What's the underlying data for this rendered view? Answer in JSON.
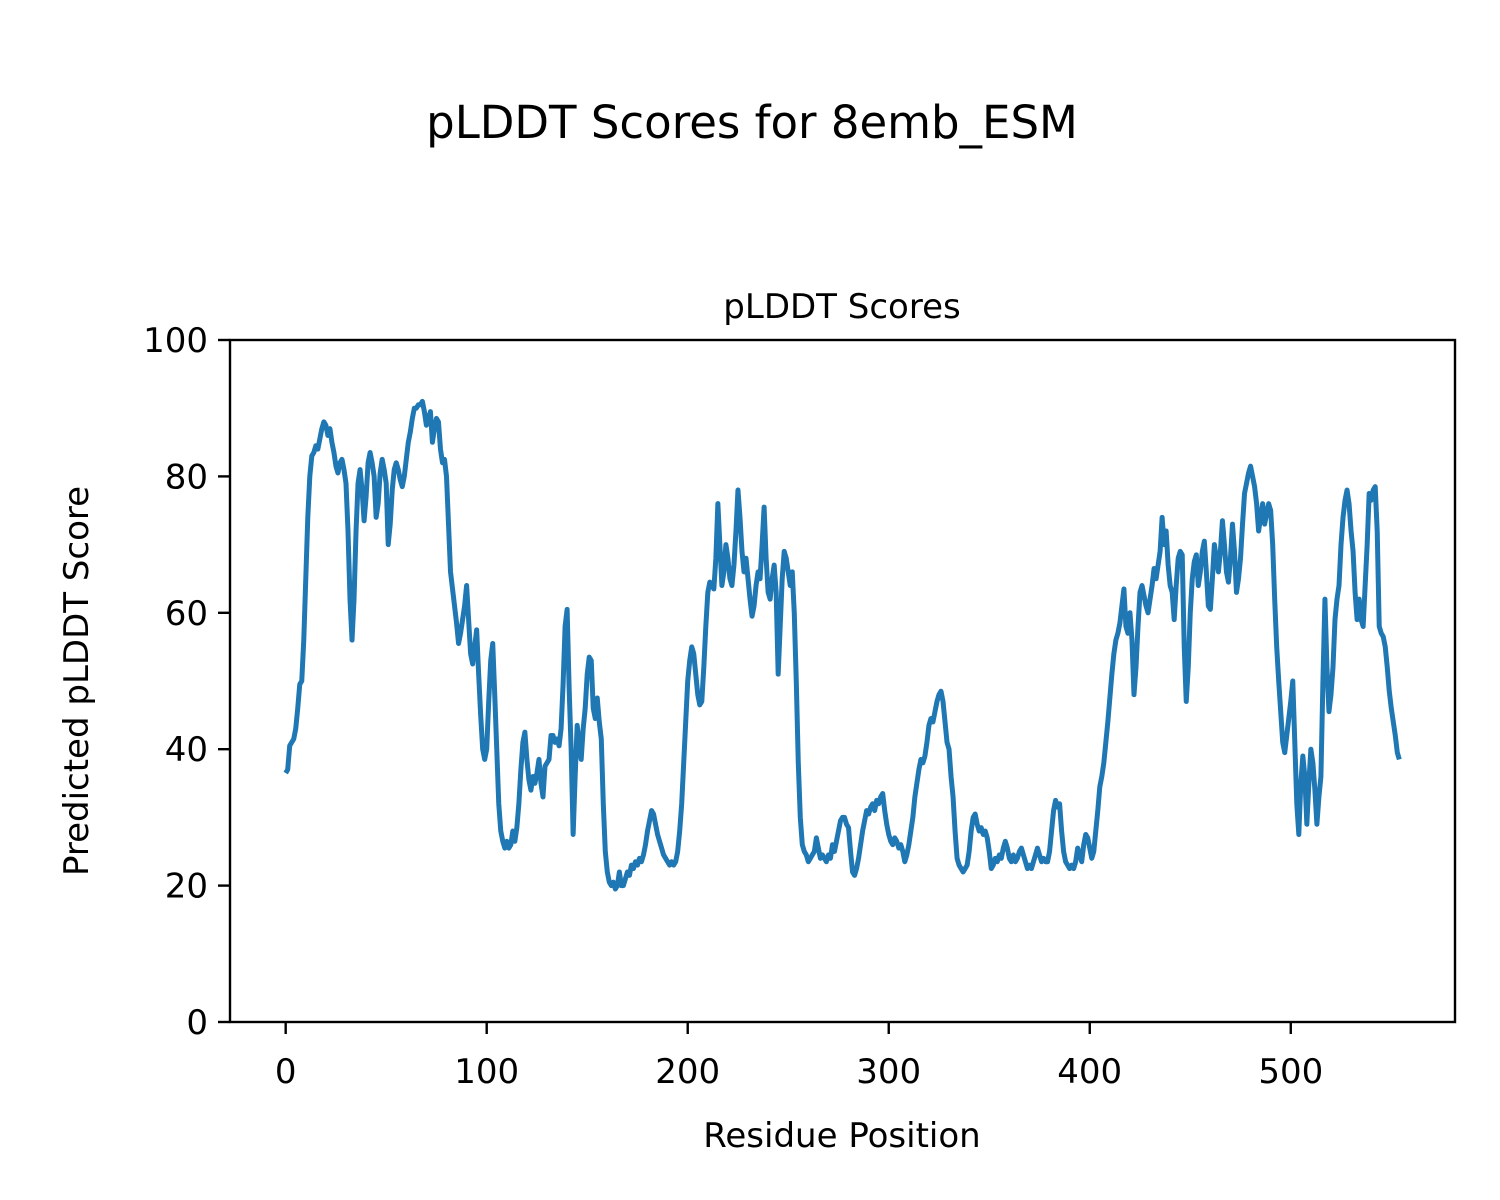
{
  "figure": {
    "title": "pLDDT Scores for 8emb_ESM"
  },
  "chart_data": {
    "type": "line",
    "title": "pLDDT Scores",
    "xlabel": "Residue Position",
    "ylabel": "Predicted pLDDT Score",
    "series": [
      {
        "name": "pLDDT",
        "color": "#1f77b4",
        "x_start": 0,
        "x_step": 1,
        "y": [
          36.5,
          37,
          40.5,
          41,
          41.5,
          43,
          46,
          49.5,
          50,
          56,
          65,
          74,
          80,
          83,
          83.5,
          84.5,
          84,
          85.5,
          87,
          88,
          87.5,
          86,
          87,
          85,
          83.5,
          81.5,
          80.5,
          82,
          82.5,
          81,
          79,
          72,
          62,
          56,
          62,
          72,
          79,
          81,
          78,
          73.5,
          77,
          82,
          83.5,
          82,
          80,
          74,
          76,
          80.5,
          82.5,
          81,
          79,
          70,
          73,
          78,
          81,
          82,
          81,
          79.5,
          78.5,
          80,
          82.5,
          85,
          86.5,
          88.5,
          90,
          90,
          90.5,
          90.5,
          91,
          89.5,
          87.5,
          88.5,
          89.5,
          85,
          87,
          88.5,
          88,
          84,
          82,
          82.5,
          80,
          73,
          66,
          63.5,
          61,
          58.5,
          55.5,
          57,
          59,
          61,
          64,
          59,
          54,
          52.5,
          55,
          57.5,
          51,
          45,
          40,
          38.5,
          40,
          47,
          53,
          55.5,
          48,
          40,
          32,
          28,
          26.5,
          25.5,
          26.5,
          25.5,
          26,
          28,
          26.5,
          28.5,
          32,
          37,
          41,
          42.5,
          38.5,
          35.5,
          34,
          36,
          35,
          36.5,
          38.5,
          35,
          33,
          37.5,
          38,
          38.5,
          42,
          42,
          41,
          41.5,
          40.5,
          43,
          49.5,
          58,
          60.5,
          49,
          40,
          27.5,
          36,
          43.5,
          41,
          38.5,
          43,
          46,
          51,
          53.5,
          53,
          46,
          44.5,
          47.5,
          44,
          41.5,
          32,
          25,
          22,
          20.5,
          20,
          20.5,
          19.5,
          20,
          22,
          20,
          20,
          21,
          22,
          21.5,
          23,
          22.5,
          23.5,
          23,
          24,
          23.5,
          24.5,
          26,
          28,
          29.5,
          31,
          30.5,
          29,
          27.5,
          26.5,
          25.5,
          24.5,
          24,
          23.5,
          23,
          23.5,
          23,
          23.5,
          25,
          28,
          32,
          38,
          44,
          50,
          53,
          55,
          54,
          51,
          48,
          46.5,
          47,
          52,
          58,
          63,
          64.5,
          64,
          63.5,
          68,
          76,
          70,
          64,
          66,
          70,
          68,
          65,
          64,
          67,
          72,
          78,
          74,
          69,
          66,
          68,
          65,
          62,
          59.5,
          61,
          64,
          66,
          65,
          70,
          75.5,
          68,
          63,
          62,
          65,
          67,
          63,
          51,
          58,
          65,
          69,
          68,
          66,
          64,
          66,
          60,
          50,
          38,
          30,
          26,
          25,
          24.5,
          23.5,
          24,
          24.5,
          25,
          27,
          25.5,
          24,
          24.5,
          24,
          23.5,
          24.5,
          24,
          26,
          25,
          26.5,
          28,
          29.5,
          30,
          30,
          29,
          28.5,
          25,
          22,
          21.5,
          22.5,
          24,
          26,
          28,
          29.5,
          31,
          30.5,
          31.5,
          32,
          31,
          32.5,
          32,
          33,
          33.5,
          31,
          29,
          27.5,
          26.5,
          26,
          27,
          26.5,
          25.5,
          26,
          25,
          23.5,
          24.5,
          26,
          28,
          30,
          33,
          35,
          37,
          38.5,
          38,
          39,
          41,
          43.5,
          44.5,
          44,
          45.5,
          47,
          48,
          48.5,
          47,
          44,
          41,
          40,
          36,
          33,
          28,
          24,
          23,
          22.5,
          22,
          22.5,
          23,
          25,
          28,
          30,
          30.5,
          29,
          28,
          28.5,
          27.5,
          28,
          27,
          25,
          22.5,
          23,
          24,
          23.5,
          24.5,
          24,
          25.5,
          26.5,
          25.5,
          24,
          23.5,
          24.5,
          23.5,
          24,
          25,
          25.5,
          24.5,
          23.5,
          22.5,
          23,
          22.5,
          23.5,
          24.5,
          25.5,
          24.5,
          23.5,
          24,
          23.5,
          23.5,
          25,
          28,
          31,
          32.5,
          31.5,
          32,
          28,
          25,
          23.5,
          23,
          22.5,
          23,
          22.5,
          23.5,
          25.5,
          24.5,
          23.5,
          26,
          27.5,
          27,
          25.5,
          24,
          25,
          28,
          31,
          34.5,
          36,
          38,
          41,
          44,
          47.5,
          51,
          54,
          56,
          57,
          58.5,
          61,
          63.5,
          58,
          57,
          60,
          56,
          48,
          52,
          58,
          63,
          64,
          62.5,
          61,
          60,
          62,
          64,
          66.5,
          65,
          67,
          69,
          74,
          70,
          72,
          67,
          64,
          63,
          59,
          64,
          68,
          69,
          68.5,
          55,
          47,
          52,
          60,
          65,
          67.5,
          68.5,
          64,
          66,
          69,
          70.5,
          66,
          61,
          60.5,
          65,
          70,
          68,
          66,
          69,
          73.5,
          70,
          66,
          64.5,
          68,
          73,
          69,
          63,
          65,
          68,
          73,
          77.5,
          79,
          80.5,
          81.5,
          80,
          78.5,
          76,
          72,
          74,
          76,
          73,
          74.5,
          76,
          75,
          70,
          62,
          55,
          50,
          45.5,
          41,
          39.5,
          42,
          44.5,
          47,
          50,
          41,
          32,
          27.5,
          35,
          39,
          36,
          29,
          35,
          40,
          38,
          34,
          29,
          33,
          36,
          50,
          62,
          52,
          45.5,
          48,
          52,
          59,
          62,
          64,
          70,
          74,
          76.5,
          78,
          76,
          72,
          69,
          63,
          59,
          62,
          59,
          58,
          64,
          70,
          77.5,
          76.5,
          78,
          78.5,
          72,
          58,
          57,
          56.5,
          55,
          52,
          48.5,
          46,
          44,
          42,
          39.5,
          38.5
        ]
      }
    ],
    "xlim": [
      -27.7,
      581.7
    ],
    "ylim": [
      0,
      100
    ],
    "x_ticks": [
      0,
      100,
      200,
      300,
      400,
      500
    ],
    "y_ticks": [
      0,
      20,
      40,
      60,
      80,
      100
    ],
    "grid": false,
    "legend": "none"
  }
}
